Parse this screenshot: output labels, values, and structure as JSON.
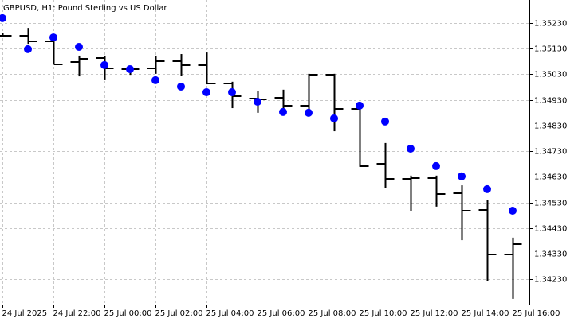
{
  "chart_data": {
    "type": "ohlc",
    "title": "GBPUSD, H1:  Pound Sterling vs US Dollar",
    "categories": [
      "24 Jul 2025",
      null,
      "24 Jul 22:00",
      null,
      "25 Jul 00:00",
      null,
      "25 Jul 02:00",
      null,
      "25 Jul 04:00",
      null,
      "25 Jul 06:00",
      null,
      "25 Jul 08:00",
      null,
      "25 Jul 10:00",
      null,
      "25 Jul 12:00",
      null,
      "25 Jul 14:00",
      null,
      "25 Jul 16:00"
    ],
    "open": [
      1.3518,
      1.3518,
      1.35159,
      1.35078,
      1.35094,
      1.3505,
      1.35053,
      1.35081,
      1.35066,
      1.34994,
      1.34935,
      1.34939,
      1.34908,
      1.35029,
      1.34895,
      1.34681,
      1.34622,
      1.34625,
      1.34566,
      1.34501,
      1.34328
    ],
    "high": [
      1.3519,
      1.35211,
      1.35165,
      1.35103,
      1.35103,
      1.35053,
      1.35103,
      1.35109,
      1.35115,
      1.35001,
      1.34966,
      1.3497,
      1.35032,
      1.35032,
      1.34914,
      1.34762,
      1.34635,
      1.34635,
      1.34597,
      1.34539,
      1.34393
    ],
    "low": [
      1.35175,
      1.35149,
      1.35069,
      1.35022,
      1.3501,
      1.35028,
      1.35032,
      1.35025,
      1.34991,
      1.34898,
      1.3488,
      1.34877,
      1.34877,
      1.34808,
      1.34669,
      1.34585,
      1.34495,
      1.34514,
      1.34383,
      1.34225,
      1.34154
    ],
    "close": [
      1.3518,
      1.35159,
      1.35069,
      1.3509,
      1.35053,
      1.3505,
      1.35081,
      1.35066,
      1.34994,
      1.34945,
      1.34932,
      1.34908,
      1.35029,
      1.34895,
      1.34672,
      1.34622,
      1.34625,
      1.34563,
      1.34498,
      1.34328,
      1.34368
    ],
    "bar_color": "#000000",
    "markers": {
      "color": "#0000ff",
      "values": [
        1.35249,
        1.35128,
        1.35174,
        1.35137,
        1.35066,
        1.3505,
        1.35007,
        1.34982,
        1.3496,
        1.3496,
        1.34923,
        1.34883,
        1.3488,
        1.34858,
        1.34908,
        1.34846,
        1.3474,
        1.34672,
        1.34632,
        1.34582,
        1.34498
      ]
    },
    "ylim": [
      1.34132,
      1.3532
    ],
    "yticks": [
      {
        "value": 1.3523,
        "label": "1.35230"
      },
      {
        "value": 1.3513,
        "label": "1.35130"
      },
      {
        "value": 1.3503,
        "label": "1.35030"
      },
      {
        "value": 1.3493,
        "label": "1.34930"
      },
      {
        "value": 1.3483,
        "label": "1.34830"
      },
      {
        "value": 1.3473,
        "label": "1.34730"
      },
      {
        "value": 1.3463,
        "label": "1.34630"
      },
      {
        "value": 1.3453,
        "label": "1.34530"
      },
      {
        "value": 1.3443,
        "label": "1.34430"
      },
      {
        "value": 1.3433,
        "label": "1.34330"
      },
      {
        "value": 1.3423,
        "label": "1.34230"
      }
    ],
    "grid": true
  }
}
